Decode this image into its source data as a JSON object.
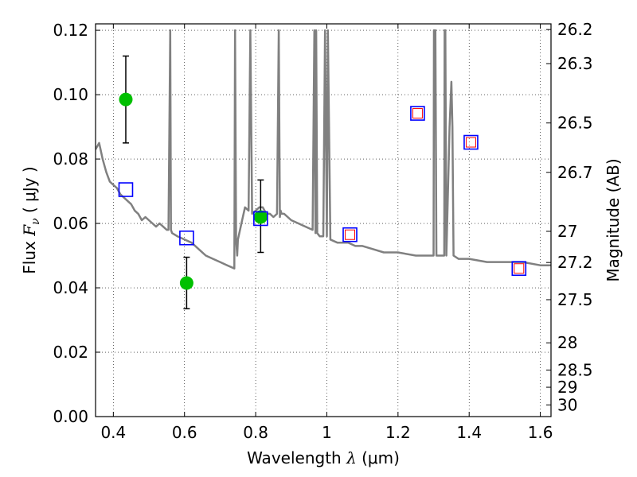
{
  "chart_data": {
    "type": "scatter",
    "xlabel": {
      "pre": "Wavelength  ",
      "sym": "λ",
      "post": " (μm)"
    },
    "ylabel": {
      "pre": "Flux  ",
      "sym": "F",
      "sub": "ν",
      "post": "  ( μJy )"
    },
    "y2label": "Magnitude (AB)",
    "xlim": [
      0.35,
      1.63
    ],
    "ylim": [
      0.0,
      0.122
    ],
    "grid": true,
    "x_ticks": [
      {
        "value": 0.4,
        "label": "0.4"
      },
      {
        "value": 0.6,
        "label": "0.6"
      },
      {
        "value": 0.8,
        "label": "0.8"
      },
      {
        "value": 1.0,
        "label": "1"
      },
      {
        "value": 1.2,
        "label": "1.2"
      },
      {
        "value": 1.4,
        "label": "1.4"
      },
      {
        "value": 1.6,
        "label": "1.6"
      }
    ],
    "y_ticks": [
      {
        "value": 0.0,
        "label": "0.00"
      },
      {
        "value": 0.02,
        "label": "0.02"
      },
      {
        "value": 0.04,
        "label": "0.04"
      },
      {
        "value": 0.06,
        "label": "0.06"
      },
      {
        "value": 0.08,
        "label": "0.08"
      },
      {
        "value": 0.1,
        "label": "0.10"
      },
      {
        "value": 0.12,
        "label": "0.12"
      }
    ],
    "mag_ticks": [
      {
        "value": 26.2,
        "label": "26.2"
      },
      {
        "value": 26.3,
        "label": "26.3"
      },
      {
        "value": 26.5,
        "label": "26.5"
      },
      {
        "value": 26.7,
        "label": "26.7"
      },
      {
        "value": 27.0,
        "label": "27"
      },
      {
        "value": 27.2,
        "label": "27.2"
      },
      {
        "value": 27.5,
        "label": "27.5"
      },
      {
        "value": 28.0,
        "label": "28"
      },
      {
        "value": 28.5,
        "label": "28.5"
      },
      {
        "value": 29.0,
        "label": "29"
      },
      {
        "value": 30.0,
        "label": "30"
      }
    ],
    "series": [
      {
        "name": "model spectrum",
        "kind": "line",
        "color": "#808080",
        "x": [
          0.35,
          0.36,
          0.37,
          0.38,
          0.39,
          0.4,
          0.41,
          0.42,
          0.43,
          0.44,
          0.45,
          0.46,
          0.47,
          0.48,
          0.49,
          0.5,
          0.51,
          0.52,
          0.53,
          0.54,
          0.55,
          0.555,
          0.56,
          0.562,
          0.565,
          0.58,
          0.6,
          0.62,
          0.64,
          0.66,
          0.68,
          0.7,
          0.72,
          0.74,
          0.742,
          0.745,
          0.748,
          0.75,
          0.76,
          0.77,
          0.78,
          0.785,
          0.79,
          0.8,
          0.81,
          0.82,
          0.83,
          0.84,
          0.85,
          0.86,
          0.865,
          0.868,
          0.87,
          0.873,
          0.88,
          0.9,
          0.92,
          0.94,
          0.96,
          0.965,
          0.968,
          0.97,
          0.973,
          0.98,
          0.99,
          0.995,
          1.0,
          1.003,
          1.01,
          1.03,
          1.06,
          1.08,
          1.1,
          1.13,
          1.16,
          1.2,
          1.25,
          1.28,
          1.3,
          1.301,
          1.305,
          1.308,
          1.33,
          1.331,
          1.333,
          1.336,
          1.345,
          1.35,
          1.353,
          1.356,
          1.37,
          1.4,
          1.45,
          1.5,
          1.55,
          1.6,
          1.63
        ],
        "y": [
          0.083,
          0.085,
          0.08,
          0.076,
          0.073,
          0.072,
          0.071,
          0.069,
          0.068,
          0.067,
          0.066,
          0.064,
          0.063,
          0.061,
          0.062,
          0.061,
          0.06,
          0.059,
          0.06,
          0.059,
          0.058,
          0.058,
          0.12,
          0.058,
          0.057,
          0.056,
          0.055,
          0.054,
          0.052,
          0.05,
          0.049,
          0.048,
          0.047,
          0.046,
          0.12,
          0.055,
          0.05,
          0.055,
          0.06,
          0.065,
          0.064,
          0.12,
          0.063,
          0.064,
          0.065,
          0.065,
          0.063,
          0.063,
          0.062,
          0.063,
          0.12,
          0.062,
          0.064,
          0.063,
          0.063,
          0.061,
          0.06,
          0.059,
          0.058,
          0.12,
          0.057,
          0.12,
          0.057,
          0.056,
          0.056,
          0.12,
          0.056,
          0.12,
          0.055,
          0.054,
          0.054,
          0.053,
          0.053,
          0.052,
          0.051,
          0.051,
          0.05,
          0.05,
          0.05,
          0.12,
          0.12,
          0.05,
          0.05,
          0.12,
          0.12,
          0.05,
          0.09,
          0.104,
          0.09,
          0.05,
          0.049,
          0.049,
          0.048,
          0.048,
          0.048,
          0.047,
          0.047
        ]
      },
      {
        "name": "observed photometry",
        "kind": "errorbar",
        "color": "#00c000",
        "points": [
          {
            "x": 0.435,
            "y": 0.0985,
            "err_lo": 0.0135,
            "err_hi": 0.0135
          },
          {
            "x": 0.606,
            "y": 0.0415,
            "err_lo": 0.008,
            "err_hi": 0.008
          },
          {
            "x": 0.814,
            "y": 0.062,
            "err_lo": 0.011,
            "err_hi": 0.0115
          }
        ]
      },
      {
        "name": "model photometry",
        "kind": "square-blue",
        "color": "#0000ff",
        "points": [
          {
            "x": 0.435,
            "y": 0.0705
          },
          {
            "x": 0.606,
            "y": 0.0555
          },
          {
            "x": 0.814,
            "y": 0.0615
          },
          {
            "x": 1.065,
            "y": 0.0565
          },
          {
            "x": 1.255,
            "y": 0.0942
          },
          {
            "x": 1.405,
            "y": 0.0852
          },
          {
            "x": 1.54,
            "y": 0.046
          }
        ]
      },
      {
        "name": "model photometry (NIR)",
        "kind": "square-red",
        "color": "#ff0000",
        "points": [
          {
            "x": 1.065,
            "y": 0.0565
          },
          {
            "x": 1.255,
            "y": 0.0942
          },
          {
            "x": 1.405,
            "y": 0.0852
          },
          {
            "x": 1.54,
            "y": 0.046
          }
        ]
      }
    ]
  }
}
